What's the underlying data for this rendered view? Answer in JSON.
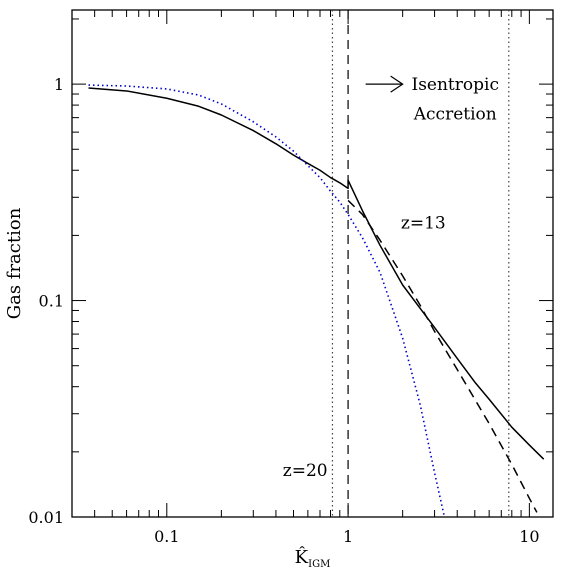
{
  "chart_data": {
    "type": "line",
    "title": "",
    "xlabel_main": "K̂",
    "xlabel_sub": "IGM",
    "ylabel": "Gas fraction",
    "x_scale": "log",
    "y_scale": "log",
    "xlim": [
      0.03,
      13.5
    ],
    "ylim": [
      0.01,
      2.2
    ],
    "x_ticks": [
      {
        "value": 0.1,
        "label": "0.1"
      },
      {
        "value": 1,
        "label": "1"
      },
      {
        "value": 10,
        "label": "10"
      }
    ],
    "y_ticks": [
      {
        "value": 0.01,
        "label": "0.01"
      },
      {
        "value": 0.1,
        "label": "0.1"
      },
      {
        "value": 1,
        "label": "1"
      }
    ],
    "grid": false,
    "series": [
      {
        "name": "",
        "style": "solid",
        "color": "#000000",
        "x": [
          0.037,
          0.06,
          0.1,
          0.15,
          0.2,
          0.3,
          0.4,
          0.5,
          0.6,
          0.7,
          0.8,
          0.9,
          1.0,
          1.0,
          1.2,
          1.5,
          2.0,
          2.5,
          3.0,
          4.0,
          5.0,
          6.0,
          8.0,
          10.0,
          12.0
        ],
        "y": [
          0.96,
          0.93,
          0.86,
          0.79,
          0.72,
          0.61,
          0.53,
          0.47,
          0.43,
          0.4,
          0.37,
          0.35,
          0.33,
          0.36,
          0.26,
          0.18,
          0.118,
          0.092,
          0.075,
          0.054,
          0.042,
          0.035,
          0.026,
          0.0215,
          0.0185
        ]
      },
      {
        "name": "",
        "style": "dashed",
        "color": "#000000",
        "x": [
          1.0,
          1.2,
          1.5,
          2.0,
          2.5,
          3.0,
          4.0,
          5.0,
          6.0,
          8.0,
          10.0,
          11.0
        ],
        "y": [
          0.29,
          0.25,
          0.19,
          0.13,
          0.095,
          0.072,
          0.048,
          0.035,
          0.027,
          0.0175,
          0.0122,
          0.0105
        ]
      },
      {
        "name": "",
        "style": "dotted",
        "color": "#0000cc",
        "x": [
          0.037,
          0.06,
          0.1,
          0.15,
          0.2,
          0.3,
          0.4,
          0.5,
          0.6,
          0.7,
          0.8,
          0.9,
          1.0,
          1.2,
          1.5,
          2.0,
          2.5,
          3.0,
          3.4
        ],
        "y": [
          0.99,
          0.98,
          0.95,
          0.89,
          0.81,
          0.67,
          0.57,
          0.49,
          0.42,
          0.37,
          0.32,
          0.285,
          0.25,
          0.195,
          0.135,
          0.067,
          0.033,
          0.016,
          0.01
        ]
      }
    ],
    "vlines": [
      {
        "x": 0.82,
        "style": "dotted",
        "color": "#444444"
      },
      {
        "x": 1.0,
        "style": "dashed",
        "color": "#000000"
      },
      {
        "x": 7.7,
        "style": "dotted",
        "color": "#444444"
      }
    ],
    "annotations": [
      {
        "text": "Isentropic",
        "x": 3.9,
        "y": 1.0
      },
      {
        "text": "Accretion",
        "x": 3.9,
        "y": 0.73
      },
      {
        "text": "z=13",
        "x": 2.6,
        "y": 0.23
      },
      {
        "text": "z=20",
        "x": 0.58,
        "y": 0.0165
      }
    ],
    "arrow": {
      "x_from": 1.25,
      "x_to": 2.0,
      "y": 1.0
    }
  }
}
